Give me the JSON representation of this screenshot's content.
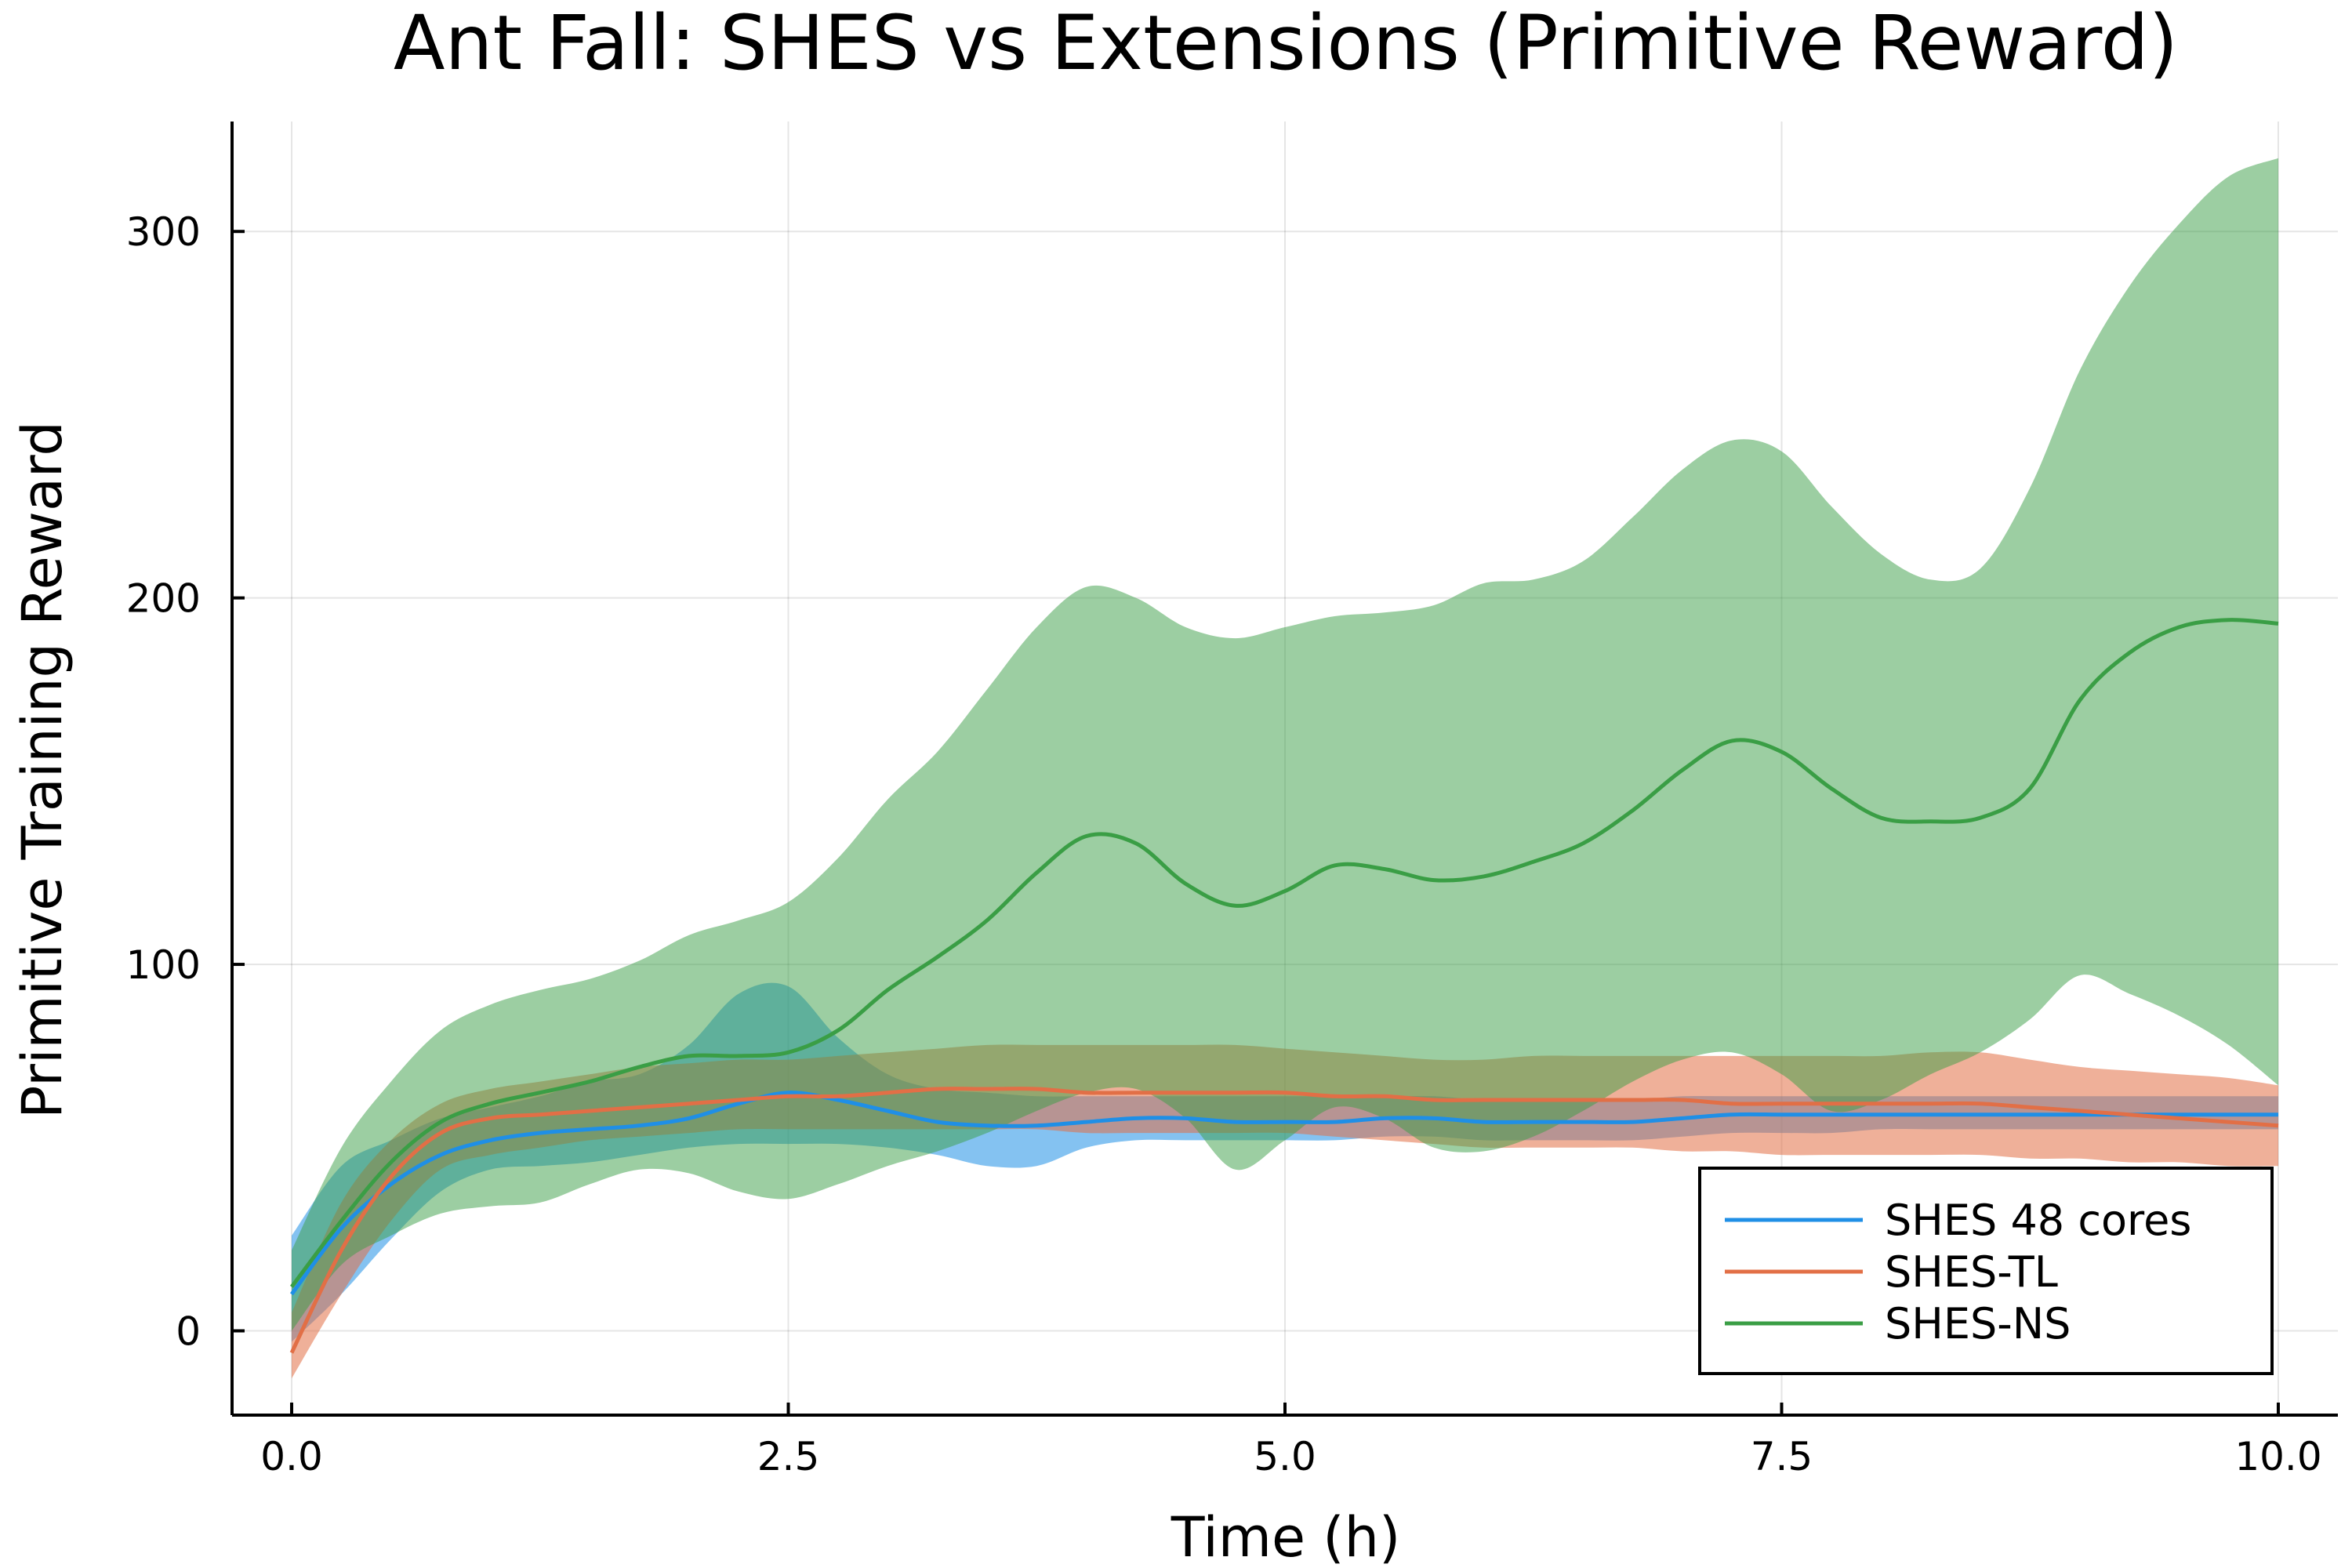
{
  "chart_data": {
    "type": "line",
    "title": "Ant Fall: SHES vs Extensions (Primitive Reward)",
    "xlabel": "Time (h)",
    "ylabel": "Primitive Training Reward",
    "xlim": [
      -0.3,
      10.3
    ],
    "ylim": [
      -23,
      330
    ],
    "xticks": [
      0.0,
      2.5,
      5.0,
      7.5,
      10.0
    ],
    "xtick_labels": [
      "0.0",
      "2.5",
      "5.0",
      "7.5",
      "10.0"
    ],
    "yticks": [
      0,
      100,
      200,
      300
    ],
    "ytick_labels": [
      "0",
      "100",
      "200",
      "300"
    ],
    "grid": true,
    "legend_position": "bottom-right",
    "x": [
      0,
      0.25,
      0.5,
      0.75,
      1.0,
      1.25,
      1.5,
      1.75,
      2.0,
      2.25,
      2.5,
      2.75,
      3.0,
      3.25,
      3.5,
      3.75,
      4.0,
      4.25,
      4.5,
      4.75,
      5.0,
      5.25,
      5.5,
      5.75,
      6.0,
      6.25,
      6.5,
      6.75,
      7.0,
      7.25,
      7.5,
      7.75,
      8.0,
      8.25,
      8.5,
      8.75,
      9.0,
      9.25,
      9.5,
      9.75,
      10.0
    ],
    "series": [
      {
        "name": "SHES 48 cores",
        "color": "#1f8fe6",
        "band_opacity": 0.55,
        "mean": [
          10,
          28,
          40,
          48,
          52,
          54,
          55,
          56,
          58,
          62,
          65,
          63,
          60,
          57,
          56,
          56,
          57,
          58,
          58,
          57,
          57,
          57,
          58,
          58,
          57,
          57,
          57,
          57,
          58,
          59,
          59,
          59,
          59,
          59,
          59,
          59,
          59,
          59,
          59,
          59,
          59
        ],
        "upper": [
          26,
          45,
          52,
          58,
          61,
          64,
          68,
          70,
          78,
          92,
          94,
          80,
          70,
          66,
          65,
          64,
          64,
          64,
          64,
          64,
          64,
          64,
          64,
          64,
          63,
          63,
          63,
          63,
          64,
          64,
          64,
          64,
          64,
          64,
          64,
          64,
          64,
          64,
          64,
          64,
          64
        ],
        "lower": [
          -3,
          10,
          25,
          38,
          44,
          45,
          46,
          48,
          50,
          51,
          51,
          51,
          50,
          48,
          45,
          45,
          50,
          52,
          52,
          52,
          52,
          52,
          53,
          53,
          52,
          52,
          52,
          52,
          53,
          54,
          54,
          54,
          55,
          55,
          55,
          55,
          55,
          55,
          55,
          55,
          55
        ]
      },
      {
        "name": "SHES-TL",
        "color": "#e26f46",
        "band_opacity": 0.55,
        "mean": [
          -6,
          22,
          42,
          54,
          58,
          59,
          60,
          61,
          62,
          63,
          64,
          64,
          65,
          66,
          66,
          66,
          65,
          65,
          65,
          65,
          65,
          64,
          64,
          63,
          63,
          63,
          63,
          63,
          63,
          62,
          62,
          62,
          62,
          62,
          62,
          61,
          60,
          59,
          58,
          57,
          56
        ],
        "upper": [
          5,
          35,
          52,
          62,
          66,
          68,
          70,
          72,
          73,
          74,
          74,
          75,
          76,
          77,
          78,
          78,
          78,
          78,
          78,
          78,
          77,
          76,
          75,
          74,
          74,
          75,
          75,
          75,
          75,
          75,
          75,
          75,
          75,
          76,
          76,
          74,
          72,
          71,
          70,
          69,
          67
        ],
        "lower": [
          -13,
          10,
          30,
          44,
          48,
          50,
          52,
          53,
          54,
          55,
          55,
          55,
          55,
          55,
          55,
          55,
          54,
          54,
          54,
          54,
          54,
          53,
          52,
          51,
          50,
          50,
          50,
          50,
          49,
          49,
          48,
          48,
          48,
          48,
          48,
          47,
          47,
          46,
          46,
          45,
          45
        ]
      },
      {
        "name": "SHES-NS",
        "color": "#3a9e45",
        "band_opacity": 0.5,
        "mean": [
          12,
          30,
          46,
          57,
          62,
          65,
          68,
          72,
          75,
          75,
          76,
          82,
          93,
          102,
          112,
          125,
          135,
          133,
          122,
          116,
          120,
          127,
          126,
          123,
          124,
          128,
          133,
          142,
          153,
          161,
          158,
          148,
          140,
          139,
          140,
          148,
          172,
          185,
          192,
          194,
          193
        ],
        "upper": [
          22,
          50,
          68,
          82,
          89,
          93,
          96,
          101,
          108,
          112,
          117,
          129,
          145,
          158,
          175,
          192,
          203,
          200,
          192,
          189,
          192,
          195,
          196,
          198,
          204,
          205,
          210,
          222,
          235,
          243,
          240,
          225,
          212,
          205,
          208,
          230,
          262,
          285,
          302,
          315,
          320
        ],
        "lower": [
          0,
          18,
          26,
          32,
          34,
          35,
          40,
          44,
          43,
          38,
          36,
          40,
          45,
          49,
          54,
          60,
          65,
          66,
          58,
          44,
          52,
          61,
          58,
          50,
          49,
          53,
          60,
          68,
          74,
          76,
          70,
          60,
          63,
          70,
          76,
          85,
          97,
          92,
          86,
          78,
          67
        ]
      }
    ]
  }
}
